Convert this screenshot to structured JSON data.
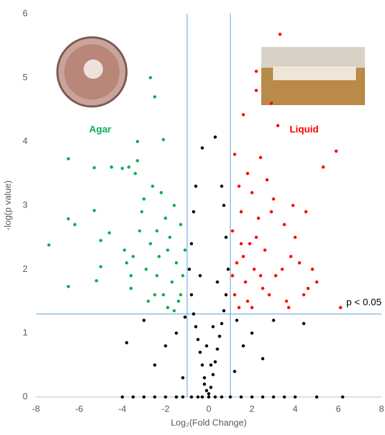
{
  "chart_data": {
    "type": "scatter",
    "xlabel": "Log₂(Fold Change)",
    "ylabel": "-log(p value)",
    "annotation": "p < 0.05",
    "xlim": [
      -8,
      8
    ],
    "xticks": [
      -8,
      -6,
      -4,
      -2,
      0,
      2,
      4,
      6,
      8
    ],
    "ylim": [
      0,
      6
    ],
    "yticks": [
      0,
      1,
      2,
      3,
      4,
      5,
      6
    ],
    "vlines": [
      -1,
      1
    ],
    "hline": 1.3,
    "line_color": "#5b9bd5",
    "series": [
      {
        "name": "Agar",
        "color": "#00b050",
        "x": [
          -7.4,
          -6.5,
          -6.5,
          -6.5,
          -6.2,
          -5.3,
          -5.3,
          -5.2,
          -5,
          -5,
          -4.6,
          -4.5,
          -4,
          -3.9,
          -3.8,
          -3.7,
          -3.6,
          -3.5,
          -3.4,
          -3.3,
          -3.2,
          -3.1,
          -3,
          -2.9,
          -2.8,
          -2.7,
          -2.6,
          -2.5,
          -2.4,
          -2.3,
          -2.2,
          -2.1,
          -2,
          -1.9,
          -1.8,
          -1.7,
          -1.6,
          -1.5,
          -1.4,
          -1.3,
          -1.2,
          -1.1,
          -1.6,
          -2.5,
          -3.3,
          -2.7,
          -2.1,
          -1.9,
          -1.3,
          -2.4,
          -3.6
        ],
        "y": [
          2.38,
          3.73,
          2.79,
          1.73,
          2.7,
          3.59,
          2.92,
          1.82,
          2.45,
          2.04,
          2.57,
          3.6,
          3.58,
          2.3,
          2.1,
          3.6,
          1.7,
          2.2,
          3.5,
          3.7,
          2.6,
          2.9,
          3.1,
          2.0,
          1.5,
          2.4,
          3.3,
          4.7,
          1.9,
          2.2,
          3.2,
          1.6,
          2.8,
          1.4,
          2.5,
          1.8,
          3.0,
          2.1,
          1.5,
          2.7,
          1.9,
          2.3,
          1.35,
          1.6,
          4.0,
          5.0,
          4.03,
          2.3,
          1.6,
          2.6,
          1.9
        ]
      },
      {
        "name": "Liquid",
        "color": "#ff0000",
        "x": [
          3.3,
          2.2,
          2.2,
          2.9,
          1.6,
          3.2,
          5.9,
          1.2,
          2.4,
          5.3,
          1.8,
          2.7,
          1.4,
          2.0,
          3.0,
          4.5,
          1.5,
          2.3,
          3.5,
          1.1,
          4.0,
          1.9,
          2.6,
          3.8,
          1.3,
          2.1,
          4.8,
          3.1,
          1.7,
          2.5,
          4.4,
          1.2,
          3.6,
          2.0,
          6.1,
          1.4,
          2.8,
          3.4,
          1.6,
          2.2,
          4.2,
          5.0,
          1.1,
          3.7,
          2.9,
          1.8,
          2.4,
          1.5,
          3.9,
          4.6
        ],
        "y": [
          5.68,
          5.1,
          4.8,
          4.6,
          4.42,
          4.25,
          3.85,
          3.8,
          3.75,
          3.6,
          3.5,
          3.4,
          3.3,
          3.2,
          3.1,
          2.9,
          2.9,
          2.8,
          2.7,
          2.6,
          2.5,
          2.4,
          2.3,
          2.2,
          2.1,
          2.0,
          2.0,
          1.9,
          1.8,
          1.7,
          1.6,
          1.6,
          1.5,
          1.4,
          1.4,
          1.4,
          1.6,
          2.0,
          2.2,
          2.5,
          2.1,
          1.8,
          1.9,
          1.4,
          2.9,
          1.5,
          1.9,
          2.4,
          3.0,
          1.7
        ]
      },
      {
        "color": "#000000",
        "x": [
          -4,
          -3.5,
          -3,
          -2.5,
          -2,
          -1.5,
          -1.2,
          -0.8,
          -0.5,
          -0.3,
          0,
          0.3,
          0.6,
          1,
          1.5,
          2,
          2.5,
          3,
          3.5,
          4,
          5,
          6.2,
          -0.1,
          0.1,
          -0.2,
          0.2,
          -0.3,
          0.3,
          -0.4,
          0.4,
          -0.5,
          0.5,
          -0.6,
          0.6,
          -0.7,
          0.7,
          -0.8,
          0.8,
          -0.9,
          0.9,
          -0.8,
          0.8,
          -0.7,
          0.7,
          -0.6,
          0.6,
          -0.3,
          0.3,
          -1.5,
          -2,
          -2.5,
          -3,
          -3.8,
          -1.2,
          1.2,
          1.6,
          2,
          2.5,
          3,
          4.4,
          1.3,
          -1.1,
          -0.2,
          0.1,
          -0.1,
          0.2,
          0,
          -0.4,
          0.4
        ],
        "y": [
          0,
          0,
          0,
          0,
          0,
          0,
          0,
          0,
          0,
          0,
          0,
          0,
          0,
          0,
          0,
          0,
          0,
          0,
          0,
          0,
          0,
          0,
          0.1,
          0.15,
          0.3,
          0.35,
          0.5,
          0.55,
          0.7,
          0.75,
          0.9,
          0.95,
          1.1,
          1.15,
          1.3,
          1.35,
          1.6,
          1.6,
          2.0,
          2.0,
          2.4,
          2.5,
          2.9,
          3.0,
          3.3,
          3.3,
          3.9,
          4.07,
          1.0,
          0.8,
          0.5,
          1.2,
          0.85,
          0.3,
          0.4,
          0.8,
          1.0,
          0.6,
          1.2,
          1.15,
          1.2,
          1.25,
          0.2,
          0.5,
          0.8,
          1.1,
          0.05,
          1.9,
          1.8
        ]
      }
    ]
  }
}
